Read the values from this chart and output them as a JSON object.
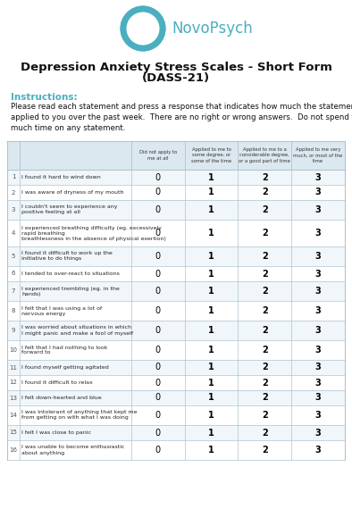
{
  "title_line1": "Depression Anxiety Stress Scales - Short Form",
  "title_line2": "(DASS-21)",
  "brand": "NovoPsych",
  "brand_color": "#4aafc0",
  "instructions_label": "Instructions:",
  "instructions_text": "Please read each statement and press a response that indicates how much the statement\napplied to you over the past week.  There are no right or wrong answers.  Do not spend too\nmuch time on any statement.",
  "col_headers": [
    "Did not apply to\nme at all",
    "Applied to me to\nsome degree, or\nsome of the time",
    "Applied to me to a\nconsiderable degree,\nor a good part of time",
    "Applied to me very\nmuch, or most of the\ntime"
  ],
  "col_values": [
    "0",
    "1",
    "2",
    "3"
  ],
  "items": [
    {
      "num": 1,
      "text": "I found it hard to wind down"
    },
    {
      "num": 2,
      "text": "I was aware of dryness of my mouth"
    },
    {
      "num": 3,
      "text": "I couldn't seem to experience any\npositive feeling at all"
    },
    {
      "num": 4,
      "text": "I experienced breathing difficulty (eg. excessively\nrapid breathing\nbreathlessness in the absence of physical exertion)"
    },
    {
      "num": 5,
      "text": "I found it difficult to work up the\ninitiative to do things"
    },
    {
      "num": 6,
      "text": "I tended to over-react to situations"
    },
    {
      "num": 7,
      "text": "I experienced trembling (eg. in the\nhands)"
    },
    {
      "num": 8,
      "text": "I felt that I was using a lot of\nnervous energy"
    },
    {
      "num": 9,
      "text": "I was worried about situations in which\nI might panic and make a fool of myself"
    },
    {
      "num": 10,
      "text": "I felt that I had nothing to look\nforward to"
    },
    {
      "num": 11,
      "text": "I found myself getting agitated"
    },
    {
      "num": 12,
      "text": "I found it difficult to relax"
    },
    {
      "num": 13,
      "text": "I felt down-hearted and blue"
    },
    {
      "num": 14,
      "text": "I was intolerant of anything that kept me\nfrom getting on with what I was doing"
    },
    {
      "num": 15,
      "text": "I felt I was close to panic"
    },
    {
      "num": 16,
      "text": "I was unable to become enthusiastic\nabout anything"
    }
  ],
  "bg_color": "#ffffff",
  "table_header_bg": "#dce8f0",
  "table_border_color": "#b0c4d0",
  "value_color": "#000000",
  "logo_color": "#4aafc0",
  "row_bg_even": "#f0f6fa",
  "row_bg_odd": "#ffffff"
}
